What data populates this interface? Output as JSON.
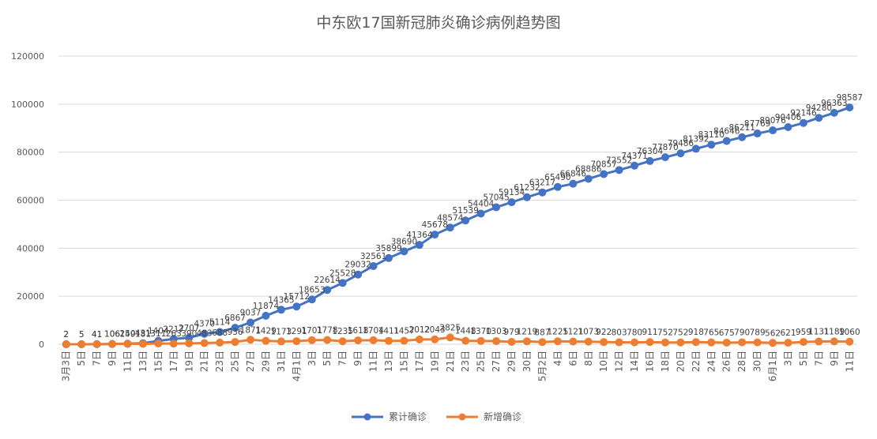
{
  "chart_data": {
    "type": "line",
    "title": "中东欧17国新冠肺炎确诊病例趋势图",
    "xlabel": "",
    "ylabel": "",
    "ylim": [
      0,
      120000
    ],
    "yticks": [
      "0",
      "20000",
      "40000",
      "60000",
      "80000",
      "100000",
      "120000"
    ],
    "grid": true,
    "legend_position": "bottom",
    "x": [
      "3月3日",
      "5日",
      "7日",
      "9日",
      "11日",
      "13日",
      "15日",
      "17日",
      "19日",
      "21日",
      "23日",
      "25日",
      "27日",
      "29日",
      "31日",
      "4月1日",
      "3日",
      "5日",
      "7日",
      "9日",
      "11日",
      "13日",
      "15日",
      "17日",
      "19日",
      "21日",
      "23日",
      "25日",
      "27日",
      "29日",
      "30日",
      "5月2日",
      "4日",
      "6日",
      "8日",
      "10日",
      "12日",
      "14日",
      "16日",
      "18日",
      "20日",
      "22日",
      "24日",
      "26日",
      "28日",
      "30日",
      "6月1日",
      "3日",
      "5日",
      "7日",
      "9日",
      "11日"
    ],
    "series": [
      {
        "name": "累计确诊",
        "color": "#4472C4",
        "values": [
          2,
          5,
          41,
          106,
          250,
          431,
          1404,
          2217,
          2707,
          4370,
          5114,
          6867,
          9037,
          11874,
          14365,
          15712,
          18653,
          22614,
          25528,
          29032,
          32561,
          35899,
          38690,
          41364,
          45678,
          48574,
          51539,
          54404,
          57045,
          59134,
          61232,
          63217,
          65490,
          66846,
          68886,
          70857,
          72552,
          74371,
          76304,
          77870,
          79486,
          81392,
          83110,
          84646,
          86211,
          87769,
          89076,
          90406,
          92146,
          94280,
          96363,
          98587
        ]
      },
      {
        "name": "新增确诊",
        "color": "#ED7D31",
        "values": [
          2,
          5,
          41,
          106,
          149,
          181,
          311,
          263,
          390,
          483,
          688,
          936,
          1871,
          1429,
          1173,
          1291,
          1701,
          1778,
          1235,
          1618,
          1704,
          1411,
          1457,
          2012,
          2043,
          2825,
          1448,
          1370,
          1303,
          979,
          1219,
          887,
          1225,
          1121,
          1073,
          922,
          803,
          780,
          911,
          752,
          752,
          918,
          765,
          675,
          790,
          789,
          562,
          621,
          959,
          1131,
          1189,
          1060
        ]
      }
    ]
  }
}
